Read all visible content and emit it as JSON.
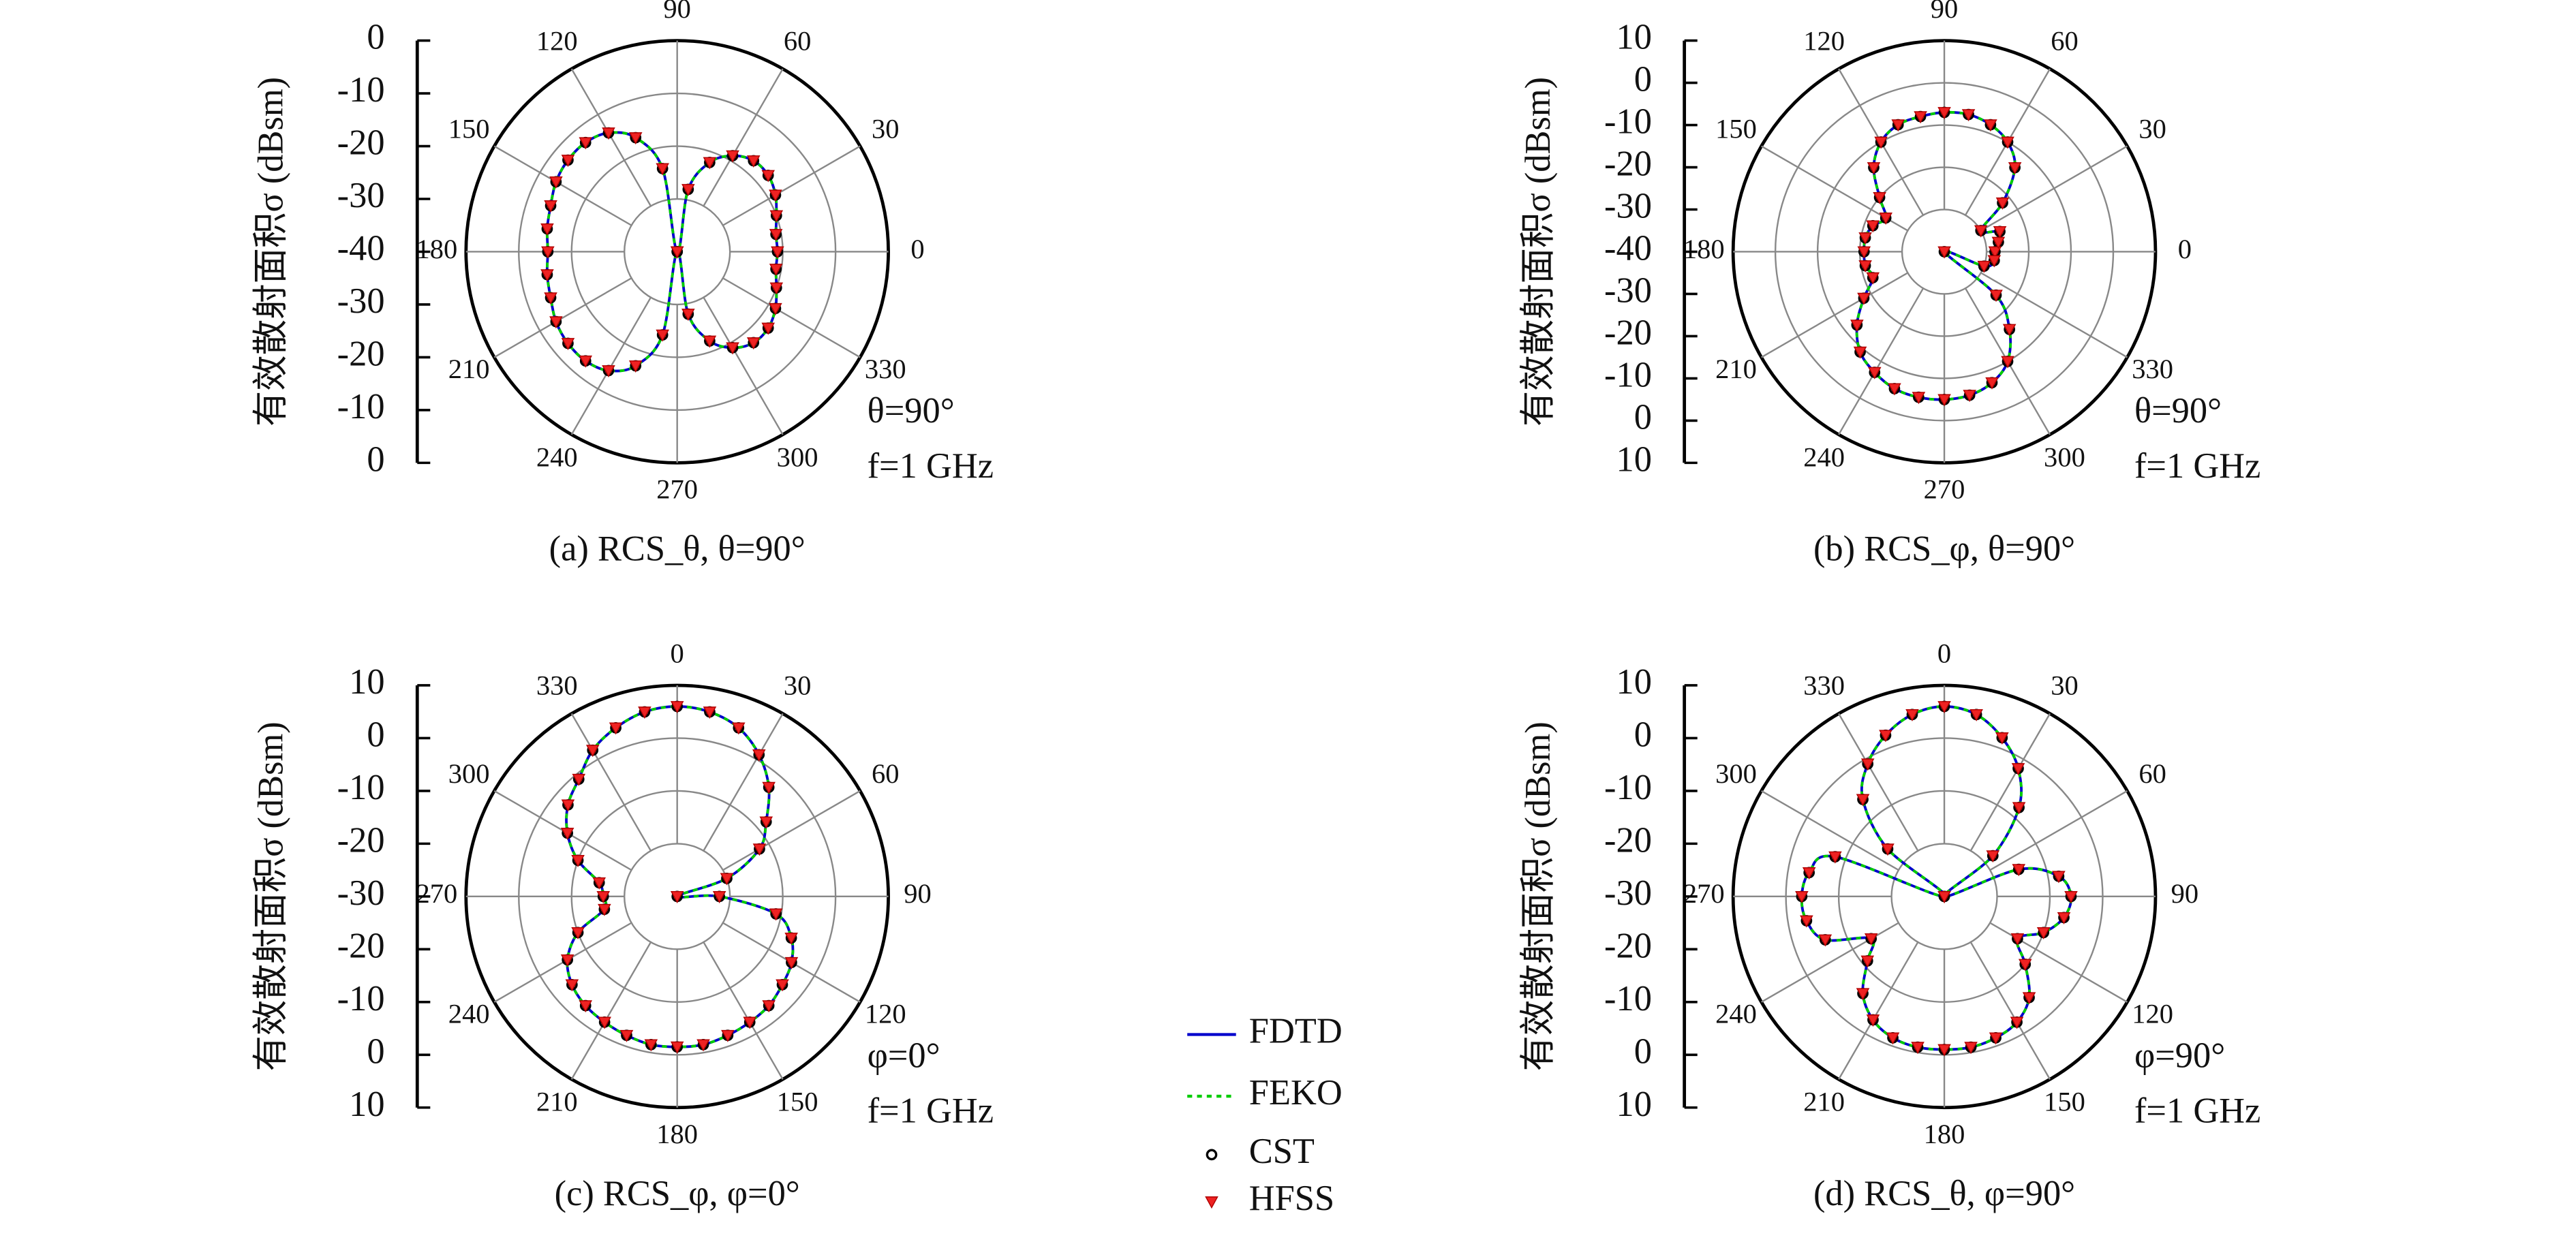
{
  "chart_data": [
    {
      "type": "polar",
      "caption": "(a) RCS_θ, θ=90°",
      "ylabel": "有效散射面积σ (dBsm)",
      "annotations": [
        "θ=90°",
        "f=1 GHz"
      ],
      "theta_zero": "E",
      "theta_direction": "counterclockwise",
      "rlim": [
        -40,
        0
      ],
      "rticks": [
        -40,
        -30,
        -20,
        -10,
        0
      ],
      "thetaticks": [
        0,
        30,
        60,
        90,
        120,
        150,
        180,
        210,
        240,
        270,
        300,
        330
      ],
      "theta": [
        0,
        10,
        20,
        30,
        40,
        50,
        60,
        70,
        80,
        90,
        100,
        110,
        120,
        130,
        140,
        150,
        160,
        170,
        180,
        190,
        200,
        210,
        220,
        230,
        240,
        250,
        260,
        270,
        280,
        290,
        300,
        310,
        320,
        330,
        340,
        350
      ],
      "series": [
        {
          "name": "FDTD",
          "color": "#0000cc",
          "style": "solid",
          "values": [
            -21,
            -21,
            -20,
            -18.5,
            -17.5,
            -17.5,
            -19,
            -22,
            -28,
            -40,
            -24,
            -17,
            -14,
            -13,
            -13,
            -13.5,
            -14.5,
            -15,
            -15.5,
            -15,
            -14.5,
            -13.5,
            -13,
            -13,
            -14,
            -17,
            -24,
            -40,
            -28,
            -22,
            -19,
            -17.5,
            -17.5,
            -18.5,
            -20,
            -21
          ]
        },
        {
          "name": "FEKO",
          "color": "#00cc00",
          "style": "dashed",
          "values": [
            -21,
            -21,
            -20,
            -18.5,
            -17.5,
            -17.5,
            -19,
            -22,
            -28,
            -40,
            -24,
            -17,
            -14,
            -13,
            -13,
            -13.5,
            -14.5,
            -15,
            -15.5,
            -15,
            -14.5,
            -13.5,
            -13,
            -13,
            -14,
            -17,
            -24,
            -40,
            -28,
            -22,
            -19,
            -17.5,
            -17.5,
            -18.5,
            -20,
            -21
          ]
        },
        {
          "name": "CST",
          "color": "#000000",
          "style": "circle",
          "values": [
            -21,
            -21,
            -20,
            -18.5,
            -17.5,
            -17.5,
            -19,
            -22,
            -28,
            -40,
            -24,
            -17,
            -14,
            -13,
            -13,
            -13.5,
            -14.5,
            -15,
            -15.5,
            -15,
            -14.5,
            -13.5,
            -13,
            -13,
            -14,
            -17,
            -24,
            -40,
            -28,
            -22,
            -19,
            -17.5,
            -17.5,
            -18.5,
            -20,
            -21
          ]
        },
        {
          "name": "HFSS",
          "color": "#ee2222",
          "style": "triangle-down",
          "values": [
            -21,
            -21,
            -20,
            -18.5,
            -17.5,
            -17.5,
            -19,
            -22,
            -28,
            -40,
            -24,
            -17,
            -14,
            -13,
            -13,
            -13.5,
            -14.5,
            -15,
            -15.5,
            -15,
            -14.5,
            -13.5,
            -13,
            -13,
            -14,
            -17,
            -24,
            -40,
            -28,
            -22,
            -19,
            -17.5,
            -17.5,
            -18.5,
            -20,
            -21
          ]
        }
      ]
    },
    {
      "type": "polar",
      "caption": "(b) RCS_φ, θ=90°",
      "ylabel": "有效散射面积σ (dBsm)",
      "annotations": [
        "θ=90°",
        "f=1 GHz"
      ],
      "theta_zero": "E",
      "theta_direction": "counterclockwise",
      "rlim": [
        -40,
        10
      ],
      "rticks": [
        -40,
        -30,
        -20,
        -10,
        0,
        10
      ],
      "thetaticks": [
        0,
        30,
        60,
        90,
        120,
        150,
        180,
        210,
        240,
        270,
        300,
        330
      ],
      "theta": [
        0,
        10,
        20,
        30,
        40,
        50,
        60,
        70,
        80,
        90,
        100,
        110,
        120,
        130,
        140,
        150,
        160,
        170,
        180,
        190,
        200,
        210,
        220,
        230,
        240,
        250,
        260,
        270,
        280,
        290,
        300,
        310,
        320,
        330,
        340,
        350
      ],
      "series": [
        {
          "color": "#0000cc",
          "style": "solid",
          "values": [
            -28,
            -27,
            -26,
            -30,
            -22,
            -14,
            -10,
            -8,
            -7,
            -7,
            -7.5,
            -8,
            -10,
            -14,
            -20,
            -24,
            -22,
            -21,
            -21,
            -21,
            -22,
            -18,
            -13,
            -9,
            -7,
            -5.5,
            -5,
            -5,
            -5.5,
            -7,
            -10,
            -16,
            -24,
            -40,
            -30,
            -28
          ]
        },
        {
          "color": "#00cc00",
          "style": "dashed",
          "values": [
            -28,
            -27,
            -26,
            -30,
            -22,
            -14,
            -10,
            -8,
            -7,
            -7,
            -7.5,
            -8,
            -10,
            -14,
            -20,
            -24,
            -22,
            -21,
            -21,
            -21,
            -22,
            -18,
            -13,
            -9,
            -7,
            -5.5,
            -5,
            -5,
            -5.5,
            -7,
            -10,
            -16,
            -24,
            -40,
            -30,
            -28
          ]
        },
        {
          "color": "#000000",
          "style": "circle",
          "values": [
            -28,
            -27,
            -26,
            -30,
            -22,
            -14,
            -10,
            -8,
            -7,
            -7,
            -7.5,
            -8,
            -10,
            -14,
            -20,
            -24,
            -22,
            -21,
            -21,
            -21,
            -22,
            -18,
            -13,
            -9,
            -7,
            -5.5,
            -5,
            -5,
            -5.5,
            -7,
            -10,
            -16,
            -24,
            -40,
            -30,
            -28
          ]
        },
        {
          "color": "#ee2222",
          "style": "triangle-down",
          "values": [
            -28,
            -27,
            -26,
            -30,
            -22,
            -14,
            -10,
            -8,
            -7,
            -7,
            -7.5,
            -8,
            -10,
            -14,
            -20,
            -24,
            -22,
            -21,
            -21,
            -21,
            -22,
            -18,
            -13,
            -9,
            -7,
            -5.5,
            -5,
            -5,
            -5.5,
            -7,
            -10,
            -16,
            -24,
            -40,
            -30,
            -28
          ]
        }
      ]
    },
    {
      "type": "polar",
      "caption": "(c) RCS_φ, φ=0°",
      "ylabel": "有效散射面积σ (dBsm)",
      "annotations": [
        "φ=0°",
        "f=1 GHz"
      ],
      "theta_zero": "N",
      "theta_direction": "clockwise",
      "rlim": [
        -30,
        10
      ],
      "rticks": [
        -30,
        -20,
        -10,
        0,
        10
      ],
      "thetaticks": [
        0,
        30,
        60,
        90,
        120,
        150,
        180,
        210,
        240,
        270,
        300,
        330
      ],
      "theta": [
        0,
        10,
        20,
        30,
        40,
        50,
        60,
        70,
        80,
        90,
        100,
        110,
        120,
        130,
        140,
        150,
        160,
        170,
        180,
        190,
        200,
        210,
        220,
        230,
        240,
        250,
        260,
        270,
        280,
        290,
        300,
        310,
        320,
        330,
        340,
        350
      ],
      "series": [
        {
          "color": "#0000cc",
          "style": "solid",
          "values": [
            6,
            5.5,
            4,
            1,
            -3,
            -8,
            -12,
            -20,
            -30,
            -22,
            -11,
            -7,
            -5,
            -4,
            -3,
            -2.5,
            -2,
            -1.5,
            -1.5,
            -1.5,
            -2,
            -2.5,
            -3,
            -4,
            -6,
            -10,
            -16,
            -16,
            -15,
            -10,
            -6,
            -3,
            -1,
            2,
            4,
            5.5
          ]
        },
        {
          "color": "#00cc00",
          "style": "dashed",
          "values": [
            6,
            5.5,
            4,
            1,
            -3,
            -8,
            -12,
            -20,
            -30,
            -22,
            -11,
            -7,
            -5,
            -4,
            -3,
            -2.5,
            -2,
            -1.5,
            -1.5,
            -1.5,
            -2,
            -2.5,
            -3,
            -4,
            -6,
            -10,
            -16,
            -16,
            -15,
            -10,
            -6,
            -3,
            -1,
            2,
            4,
            5.5
          ]
        },
        {
          "color": "#000000",
          "style": "circle",
          "values": [
            6,
            5.5,
            4,
            1,
            -3,
            -8,
            -12,
            -20,
            -30,
            -22,
            -11,
            -7,
            -5,
            -4,
            -3,
            -2.5,
            -2,
            -1.5,
            -1.5,
            -1.5,
            -2,
            -2.5,
            -3,
            -4,
            -6,
            -10,
            -16,
            -16,
            -15,
            -10,
            -6,
            -3,
            -1,
            2,
            4,
            5.5
          ]
        },
        {
          "color": "#ee2222",
          "style": "triangle-down",
          "values": [
            6,
            5.5,
            4,
            1,
            -3,
            -8,
            -12,
            -20,
            -30,
            -22,
            -11,
            -7,
            -5,
            -4,
            -3,
            -2.5,
            -2,
            -1.5,
            -1.5,
            -1.5,
            -2,
            -2.5,
            -3,
            -4,
            -6,
            -10,
            -16,
            -16,
            -15,
            -10,
            -6,
            -3,
            -1,
            2,
            4,
            5.5
          ]
        }
      ]
    },
    {
      "type": "polar",
      "caption": "(d) RCS_θ, φ=90°",
      "ylabel": "有效散射面积σ (dBsm)",
      "annotations": [
        "φ=90°",
        "f=1 GHz"
      ],
      "theta_zero": "N",
      "theta_direction": "clockwise",
      "rlim": [
        -30,
        10
      ],
      "rticks": [
        -30,
        -20,
        -10,
        0,
        10
      ],
      "thetaticks": [
        0,
        30,
        60,
        90,
        120,
        150,
        180,
        210,
        240,
        270,
        300,
        330
      ],
      "theta": [
        0,
        10,
        20,
        30,
        40,
        50,
        60,
        70,
        80,
        90,
        100,
        110,
        120,
        130,
        140,
        150,
        160,
        170,
        180,
        190,
        200,
        210,
        220,
        230,
        240,
        250,
        260,
        270,
        280,
        290,
        300,
        310,
        320,
        330,
        340,
        350
      ],
      "series": [
        {
          "color": "#0000cc",
          "style": "solid",
          "values": [
            6,
            5,
            2,
            -2,
            -8,
            -18,
            -30,
            -15,
            -8,
            -6,
            -7,
            -10,
            -14,
            -10,
            -5,
            -2.5,
            -1.5,
            -1,
            -1,
            -1,
            -1.5,
            -3,
            -6,
            -11,
            -14,
            -6,
            -3.5,
            -3,
            -4,
            -8,
            -30,
            -16,
            -6,
            -1,
            2.5,
            5
          ]
        },
        {
          "color": "#00cc00",
          "style": "dashed",
          "values": [
            6,
            5,
            2,
            -2,
            -8,
            -18,
            -30,
            -15,
            -8,
            -6,
            -7,
            -10,
            -14,
            -10,
            -5,
            -2.5,
            -1.5,
            -1,
            -1,
            -1,
            -1.5,
            -3,
            -6,
            -11,
            -14,
            -6,
            -3.5,
            -3,
            -4,
            -8,
            -30,
            -16,
            -6,
            -1,
            2.5,
            5
          ]
        },
        {
          "color": "#000000",
          "style": "circle",
          "values": [
            6,
            5,
            2,
            -2,
            -8,
            -18,
            -30,
            -15,
            -8,
            -6,
            -7,
            -10,
            -14,
            -10,
            -5,
            -2.5,
            -1.5,
            -1,
            -1,
            -1,
            -1.5,
            -3,
            -6,
            -11,
            -14,
            -6,
            -3.5,
            -3,
            -4,
            -8,
            -30,
            -16,
            -6,
            -1,
            2.5,
            5
          ]
        },
        {
          "color": "#ee2222",
          "style": "triangle-down",
          "values": [
            6,
            5,
            2,
            -2,
            -8,
            -18,
            -30,
            -15,
            -8,
            -6,
            -7,
            -10,
            -14,
            -10,
            -5,
            -2.5,
            -1.5,
            -1,
            -1,
            -1,
            -1.5,
            -3,
            -6,
            -11,
            -14,
            -6,
            -3.5,
            -3,
            -4,
            -8,
            -30,
            -16,
            -6,
            -1,
            2.5,
            5
          ]
        }
      ]
    }
  ]
}
